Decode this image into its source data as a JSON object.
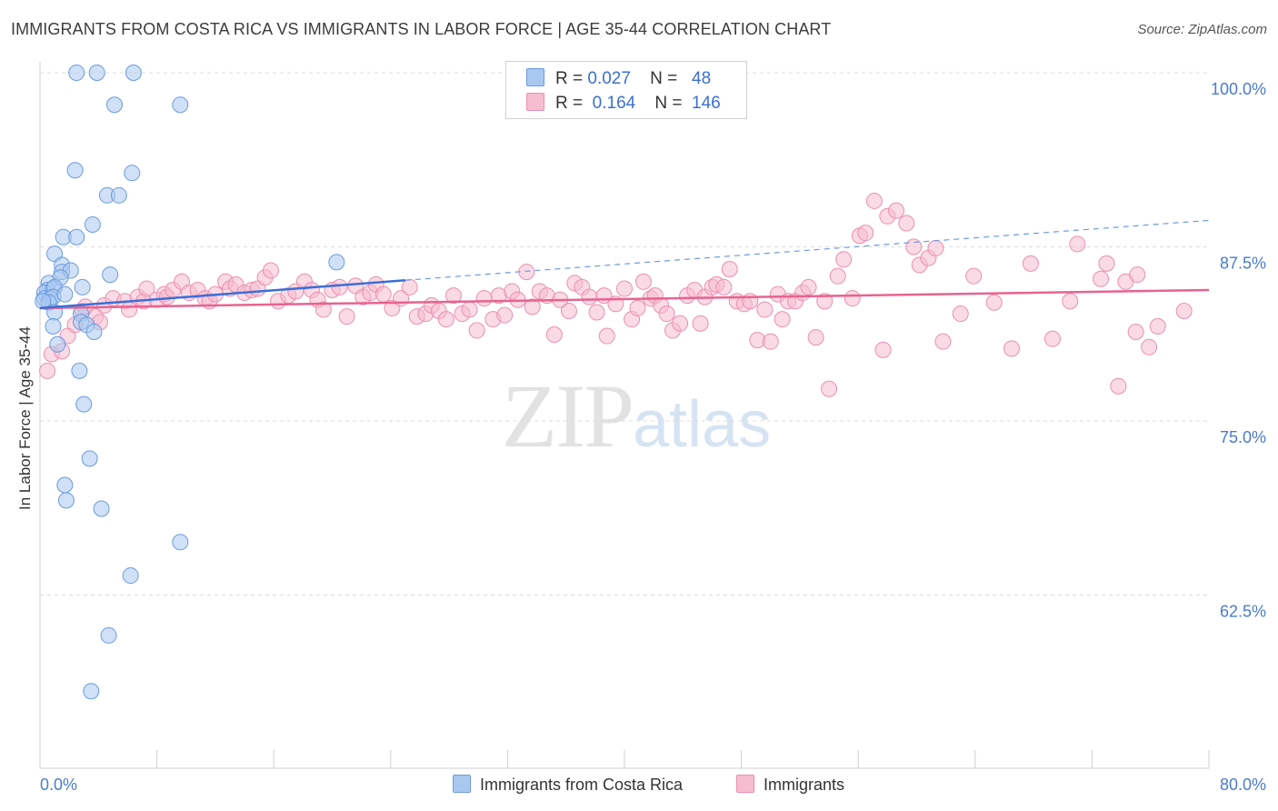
{
  "header": {
    "title": "IMMIGRANTS FROM COSTA RICA VS IMMIGRANTS IN LABOR FORCE | AGE 35-44 CORRELATION CHART",
    "source": "Source: ZipAtlas.com"
  },
  "watermark": {
    "zip": "ZIP",
    "atlas": "atlas"
  },
  "legend": {
    "rows": [
      {
        "r_label": "R =",
        "r_value": "0.027",
        "n_label": "N =",
        "n_value": "48"
      },
      {
        "r_label": "R =",
        "r_value": "0.164",
        "n_label": "N =",
        "n_value": "146"
      }
    ]
  },
  "bottom_legend": {
    "blue_label": "Immigrants from Costa Rica",
    "pink_label": "Immigrants"
  },
  "chart_data": {
    "type": "scatter",
    "ylabel": "In Labor Force | Age 35-44",
    "xlim": [
      0,
      80
    ],
    "ylim": [
      50,
      100
    ],
    "x_tick_labels": [
      "0.0%",
      "80.0%"
    ],
    "y_ticks": [
      {
        "value": 100,
        "label": "100.0%"
      },
      {
        "value": 87.5,
        "label": "87.5%"
      },
      {
        "value": 75,
        "label": "75.0%"
      },
      {
        "value": 62.5,
        "label": "62.5%"
      }
    ],
    "colors": {
      "blue_fill": "#a9c8f0",
      "blue_stroke": "#6b9be0",
      "blue_line": "#3a6fd8",
      "pink_fill": "#f6bcd0",
      "pink_stroke": "#eb8fb0",
      "pink_line": "#e8638f",
      "tick": "#4a7bd0"
    },
    "series": [
      {
        "name": "Immigrants from Costa Rica",
        "points": [
          [
            2.5,
            100
          ],
          [
            3.9,
            100
          ],
          [
            6.4,
            100
          ],
          [
            5.1,
            97.7
          ],
          [
            9.6,
            97.7
          ],
          [
            2.4,
            93
          ],
          [
            6.3,
            92.8
          ],
          [
            4.6,
            91.2
          ],
          [
            5.4,
            91.2
          ],
          [
            3.6,
            89.1
          ],
          [
            1.6,
            88.2
          ],
          [
            2.5,
            88.2
          ],
          [
            1.0,
            87
          ],
          [
            1.5,
            86.2
          ],
          [
            1.5,
            85.7
          ],
          [
            2.1,
            85.8
          ],
          [
            1.4,
            85.3
          ],
          [
            4.8,
            85.5
          ],
          [
            0.6,
            84.9
          ],
          [
            0.5,
            84.4
          ],
          [
            0.3,
            84.2
          ],
          [
            0.9,
            84.5
          ],
          [
            1.0,
            84.6
          ],
          [
            2.9,
            84.6
          ],
          [
            0.3,
            83.8
          ],
          [
            0.7,
            83.8
          ],
          [
            0.9,
            83.9
          ],
          [
            1.7,
            84.1
          ],
          [
            0.6,
            83.5
          ],
          [
            0.2,
            83.6
          ],
          [
            1.0,
            82.8
          ],
          [
            2.8,
            82.7
          ],
          [
            2.8,
            82.1
          ],
          [
            3.2,
            81.9
          ],
          [
            0.9,
            81.8
          ],
          [
            3.7,
            81.4
          ],
          [
            1.2,
            80.5
          ],
          [
            2.7,
            78.6
          ],
          [
            3.0,
            76.2
          ],
          [
            3.4,
            72.3
          ],
          [
            1.7,
            70.4
          ],
          [
            1.8,
            69.3
          ],
          [
            4.2,
            68.7
          ],
          [
            9.6,
            66.3
          ],
          [
            6.2,
            63.9
          ],
          [
            4.7,
            59.6
          ],
          [
            3.5,
            55.6
          ],
          [
            20.3,
            86.4
          ]
        ],
        "trend": [
          [
            0,
            83.1
          ],
          [
            25,
            85.1
          ]
        ],
        "trend_dashed": [
          [
            25,
            85.1
          ],
          [
            80,
            89.4
          ]
        ]
      },
      {
        "name": "Immigrants",
        "points": [
          [
            0.5,
            78.6
          ],
          [
            0.8,
            79.8
          ],
          [
            1.5,
            80.0
          ],
          [
            1.9,
            81.1
          ],
          [
            2.4,
            81.9
          ],
          [
            3.8,
            82.5
          ],
          [
            2.9,
            82.9
          ],
          [
            3.1,
            83.2
          ],
          [
            4.1,
            82.1
          ],
          [
            4.4,
            83.3
          ],
          [
            5.0,
            83.8
          ],
          [
            5.8,
            83.6
          ],
          [
            6.1,
            83.0
          ],
          [
            6.7,
            83.9
          ],
          [
            7.1,
            83.6
          ],
          [
            7.3,
            84.5
          ],
          [
            8.0,
            83.7
          ],
          [
            8.5,
            84.1
          ],
          [
            8.7,
            83.9
          ],
          [
            9.1,
            84.4
          ],
          [
            9.7,
            85.0
          ],
          [
            10.2,
            84.2
          ],
          [
            10.8,
            84.4
          ],
          [
            11.3,
            83.8
          ],
          [
            11.6,
            83.6
          ],
          [
            12.0,
            84.1
          ],
          [
            12.7,
            85.0
          ],
          [
            13.0,
            84.5
          ],
          [
            13.4,
            84.8
          ],
          [
            14.0,
            84.2
          ],
          [
            14.5,
            84.4
          ],
          [
            14.9,
            84.5
          ],
          [
            15.4,
            85.3
          ],
          [
            15.8,
            85.8
          ],
          [
            16.3,
            83.6
          ],
          [
            17.0,
            84.0
          ],
          [
            17.5,
            84.3
          ],
          [
            18.1,
            85.0
          ],
          [
            18.6,
            84.4
          ],
          [
            19.0,
            83.7
          ],
          [
            19.4,
            83.0
          ],
          [
            20.0,
            84.4
          ],
          [
            20.5,
            84.6
          ],
          [
            21.0,
            82.5
          ],
          [
            21.6,
            84.7
          ],
          [
            22.1,
            83.9
          ],
          [
            22.6,
            84.2
          ],
          [
            23.0,
            84.8
          ],
          [
            23.5,
            84.1
          ],
          [
            24.1,
            83.1
          ],
          [
            24.7,
            83.8
          ],
          [
            25.3,
            84.6
          ],
          [
            25.8,
            82.5
          ],
          [
            26.4,
            82.7
          ],
          [
            26.8,
            83.3
          ],
          [
            27.3,
            82.9
          ],
          [
            27.8,
            82.3
          ],
          [
            28.3,
            84.0
          ],
          [
            28.9,
            82.7
          ],
          [
            29.4,
            83.0
          ],
          [
            29.9,
            81.5
          ],
          [
            30.4,
            83.8
          ],
          [
            31.0,
            82.3
          ],
          [
            31.4,
            84.0
          ],
          [
            31.8,
            82.6
          ],
          [
            32.3,
            84.3
          ],
          [
            32.7,
            83.7
          ],
          [
            33.3,
            85.7
          ],
          [
            33.7,
            83.2
          ],
          [
            34.2,
            84.3
          ],
          [
            34.7,
            84.0
          ],
          [
            35.2,
            81.2
          ],
          [
            35.6,
            83.7
          ],
          [
            36.2,
            82.9
          ],
          [
            36.6,
            84.9
          ],
          [
            37.1,
            84.6
          ],
          [
            37.6,
            83.9
          ],
          [
            38.1,
            82.8
          ],
          [
            38.6,
            84.0
          ],
          [
            38.8,
            81.1
          ],
          [
            39.4,
            83.4
          ],
          [
            40.0,
            84.5
          ],
          [
            40.5,
            82.3
          ],
          [
            40.9,
            83.1
          ],
          [
            41.3,
            85.0
          ],
          [
            41.8,
            83.8
          ],
          [
            42.1,
            84.0
          ],
          [
            42.5,
            83.3
          ],
          [
            42.9,
            82.7
          ],
          [
            43.3,
            81.5
          ],
          [
            43.8,
            82.0
          ],
          [
            44.3,
            84.0
          ],
          [
            44.8,
            84.4
          ],
          [
            45.2,
            82.0
          ],
          [
            45.5,
            83.9
          ],
          [
            46.0,
            84.6
          ],
          [
            46.3,
            84.8
          ],
          [
            46.8,
            84.6
          ],
          [
            47.2,
            85.9
          ],
          [
            47.7,
            83.6
          ],
          [
            48.2,
            83.4
          ],
          [
            48.6,
            83.6
          ],
          [
            49.1,
            80.8
          ],
          [
            49.6,
            83.0
          ],
          [
            50.0,
            80.7
          ],
          [
            50.5,
            84.1
          ],
          [
            50.8,
            82.3
          ],
          [
            51.2,
            83.6
          ],
          [
            51.7,
            83.6
          ],
          [
            52.2,
            84.2
          ],
          [
            52.6,
            84.6
          ],
          [
            53.1,
            81.0
          ],
          [
            53.7,
            83.6
          ],
          [
            54.0,
            77.3
          ],
          [
            54.6,
            85.4
          ],
          [
            55.0,
            86.6
          ],
          [
            55.6,
            83.8
          ],
          [
            56.1,
            88.3
          ],
          [
            56.5,
            88.5
          ],
          [
            57.1,
            90.8
          ],
          [
            57.7,
            80.1
          ],
          [
            58.0,
            89.7
          ],
          [
            58.6,
            90.1
          ],
          [
            59.3,
            89.2
          ],
          [
            59.8,
            87.5
          ],
          [
            60.2,
            86.2
          ],
          [
            60.8,
            86.7
          ],
          [
            61.3,
            87.4
          ],
          [
            61.8,
            80.7
          ],
          [
            63.0,
            82.7
          ],
          [
            63.9,
            85.4
          ],
          [
            65.3,
            83.5
          ],
          [
            66.5,
            80.2
          ],
          [
            67.8,
            86.3
          ],
          [
            69.3,
            80.9
          ],
          [
            70.5,
            83.6
          ],
          [
            71.0,
            87.7
          ],
          [
            72.6,
            85.2
          ],
          [
            73.0,
            86.3
          ],
          [
            73.8,
            77.5
          ],
          [
            74.3,
            85.0
          ],
          [
            75.1,
            85.5
          ],
          [
            75.0,
            81.4
          ],
          [
            75.9,
            80.3
          ],
          [
            76.5,
            81.8
          ],
          [
            78.3,
            82.9
          ]
        ],
        "trend": [
          [
            0,
            83.1
          ],
          [
            80,
            84.4
          ]
        ]
      }
    ]
  }
}
